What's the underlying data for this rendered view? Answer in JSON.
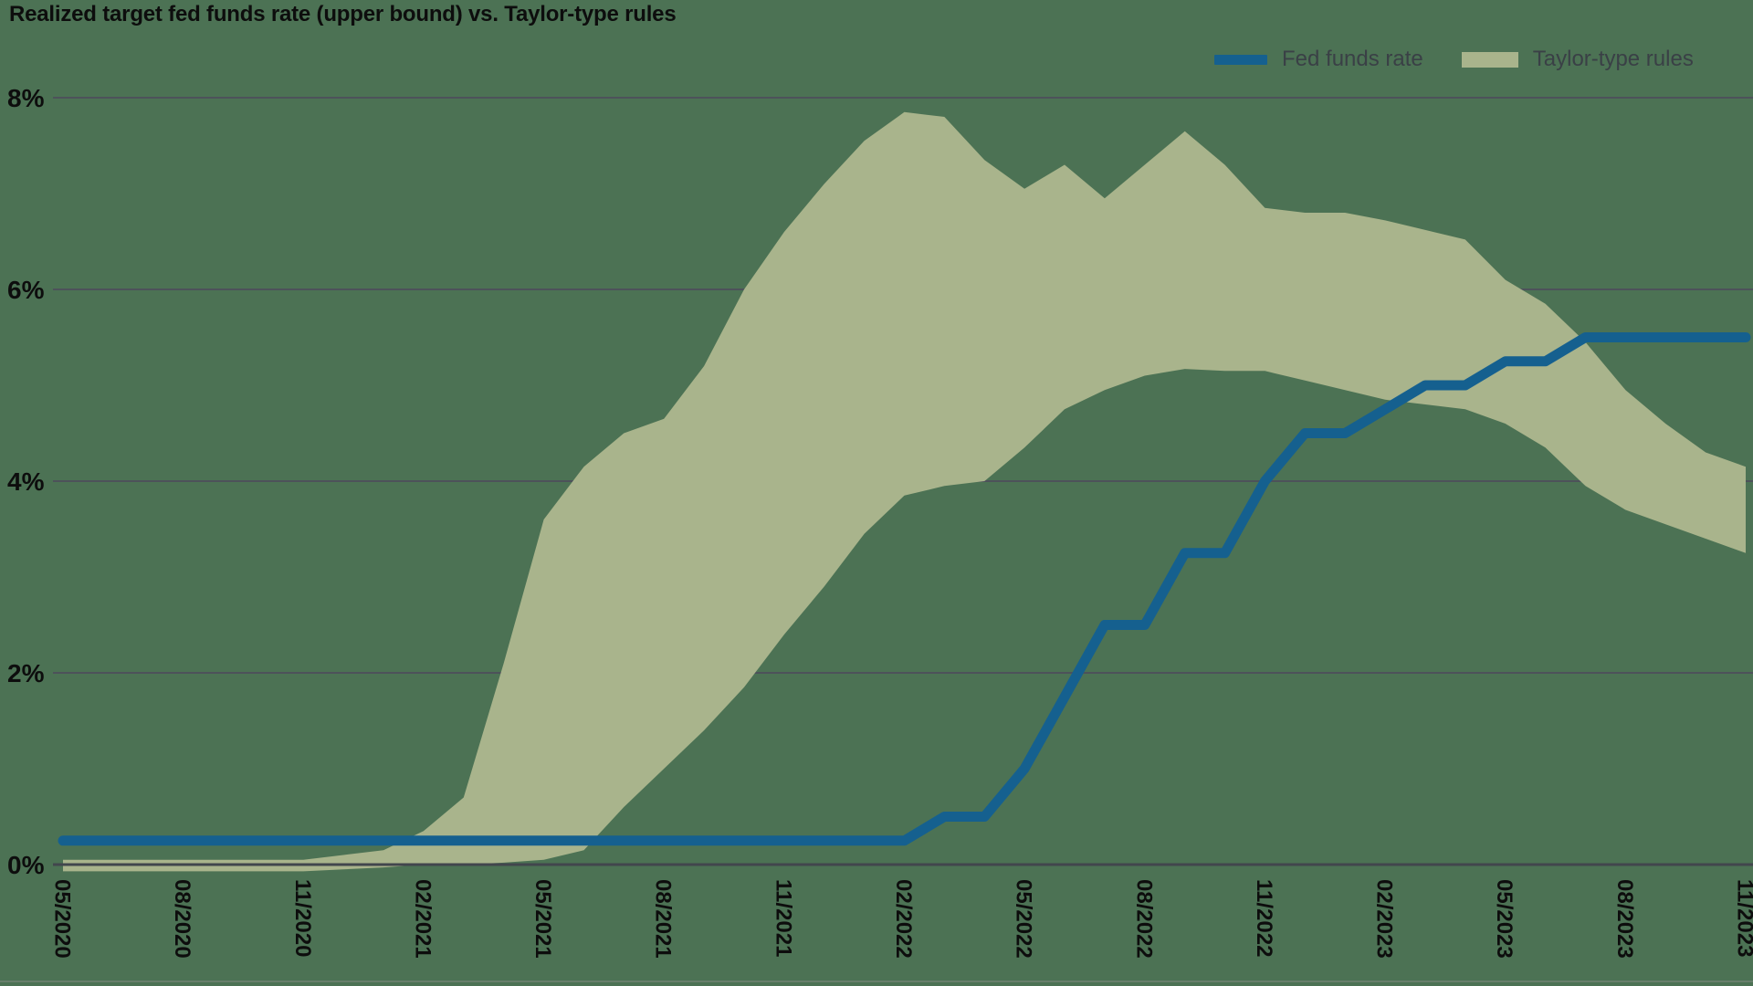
{
  "header": {
    "title": "Realized target fed funds rate (upper bound) vs. Taylor-type rules"
  },
  "legend": {
    "items": [
      {
        "label": "Fed funds rate",
        "swatch": "line"
      },
      {
        "label": "Taylor-type rules",
        "swatch": "area"
      }
    ]
  },
  "colors": {
    "background": "#4c7254",
    "band": "#a9b48c",
    "line": "#15608f",
    "grid": "#4d525a",
    "zero_line": "#42464d",
    "title_text": "#0d0d0d",
    "tick_text": "#0d0d0d",
    "legend_text": "#3a4046",
    "divider": "#7e887e"
  },
  "chart_data": {
    "type": "line",
    "title": "Realized target fed funds rate (upper bound) vs. Taylor-type rules",
    "xlabel": "",
    "ylabel": "",
    "ylim": [
      -0.15,
      8.3
    ],
    "grid": "horizontal",
    "legend_position": "top-right",
    "x": [
      "05/2020",
      "06/2020",
      "07/2020",
      "08/2020",
      "09/2020",
      "10/2020",
      "11/2020",
      "12/2020",
      "01/2021",
      "02/2021",
      "03/2021",
      "04/2021",
      "05/2021",
      "06/2021",
      "07/2021",
      "08/2021",
      "09/2021",
      "10/2021",
      "11/2021",
      "12/2021",
      "01/2022",
      "02/2022",
      "03/2022",
      "04/2022",
      "05/2022",
      "06/2022",
      "07/2022",
      "08/2022",
      "09/2022",
      "10/2022",
      "11/2022",
      "12/2022",
      "01/2023",
      "02/2023",
      "03/2023",
      "04/2023",
      "05/2023",
      "06/2023",
      "07/2023",
      "08/2023",
      "09/2023",
      "10/2023",
      "11/2023"
    ],
    "x_tick_every": 3,
    "y_ticks": [
      {
        "v": 0,
        "label": "0%"
      },
      {
        "v": 2,
        "label": "2%"
      },
      {
        "v": 4,
        "label": "4%"
      },
      {
        "v": 6,
        "label": "6%"
      },
      {
        "v": 8,
        "label": "8%"
      }
    ],
    "series": [
      {
        "name": "Fed funds rate",
        "values": [
          0.25,
          0.25,
          0.25,
          0.25,
          0.25,
          0.25,
          0.25,
          0.25,
          0.25,
          0.25,
          0.25,
          0.25,
          0.25,
          0.25,
          0.25,
          0.25,
          0.25,
          0.25,
          0.25,
          0.25,
          0.25,
          0.25,
          0.5,
          0.5,
          1.0,
          1.75,
          2.5,
          2.5,
          3.25,
          3.25,
          4.0,
          4.5,
          4.5,
          4.75,
          5.0,
          5.0,
          5.25,
          5.25,
          5.5,
          5.5,
          5.5,
          5.5,
          5.5
        ]
      }
    ],
    "band": {
      "name": "Taylor-type rules",
      "max": [
        0.05,
        0.05,
        0.05,
        0.05,
        0.05,
        0.05,
        0.05,
        0.1,
        0.15,
        0.35,
        0.7,
        2.1,
        3.6,
        4.15,
        4.5,
        4.65,
        5.2,
        6.0,
        6.6,
        7.1,
        7.55,
        7.85,
        7.8,
        7.35,
        7.05,
        7.3,
        6.95,
        7.3,
        7.65,
        7.3,
        6.85,
        6.8,
        6.8,
        6.72,
        6.62,
        6.52,
        6.1,
        5.85,
        5.45,
        4.95,
        4.6,
        4.3,
        4.15
      ],
      "min": [
        -0.07,
        -0.07,
        -0.07,
        -0.07,
        -0.07,
        -0.07,
        -0.07,
        -0.05,
        -0.03,
        0.0,
        0.0,
        0.02,
        0.05,
        0.15,
        0.6,
        1.0,
        1.4,
        1.85,
        2.4,
        2.9,
        3.45,
        3.85,
        3.95,
        4.0,
        4.35,
        4.75,
        4.95,
        5.1,
        5.17,
        5.15,
        5.15,
        5.05,
        4.95,
        4.85,
        4.8,
        4.75,
        4.6,
        4.35,
        3.95,
        3.7,
        3.55,
        3.4,
        3.25
      ]
    }
  }
}
